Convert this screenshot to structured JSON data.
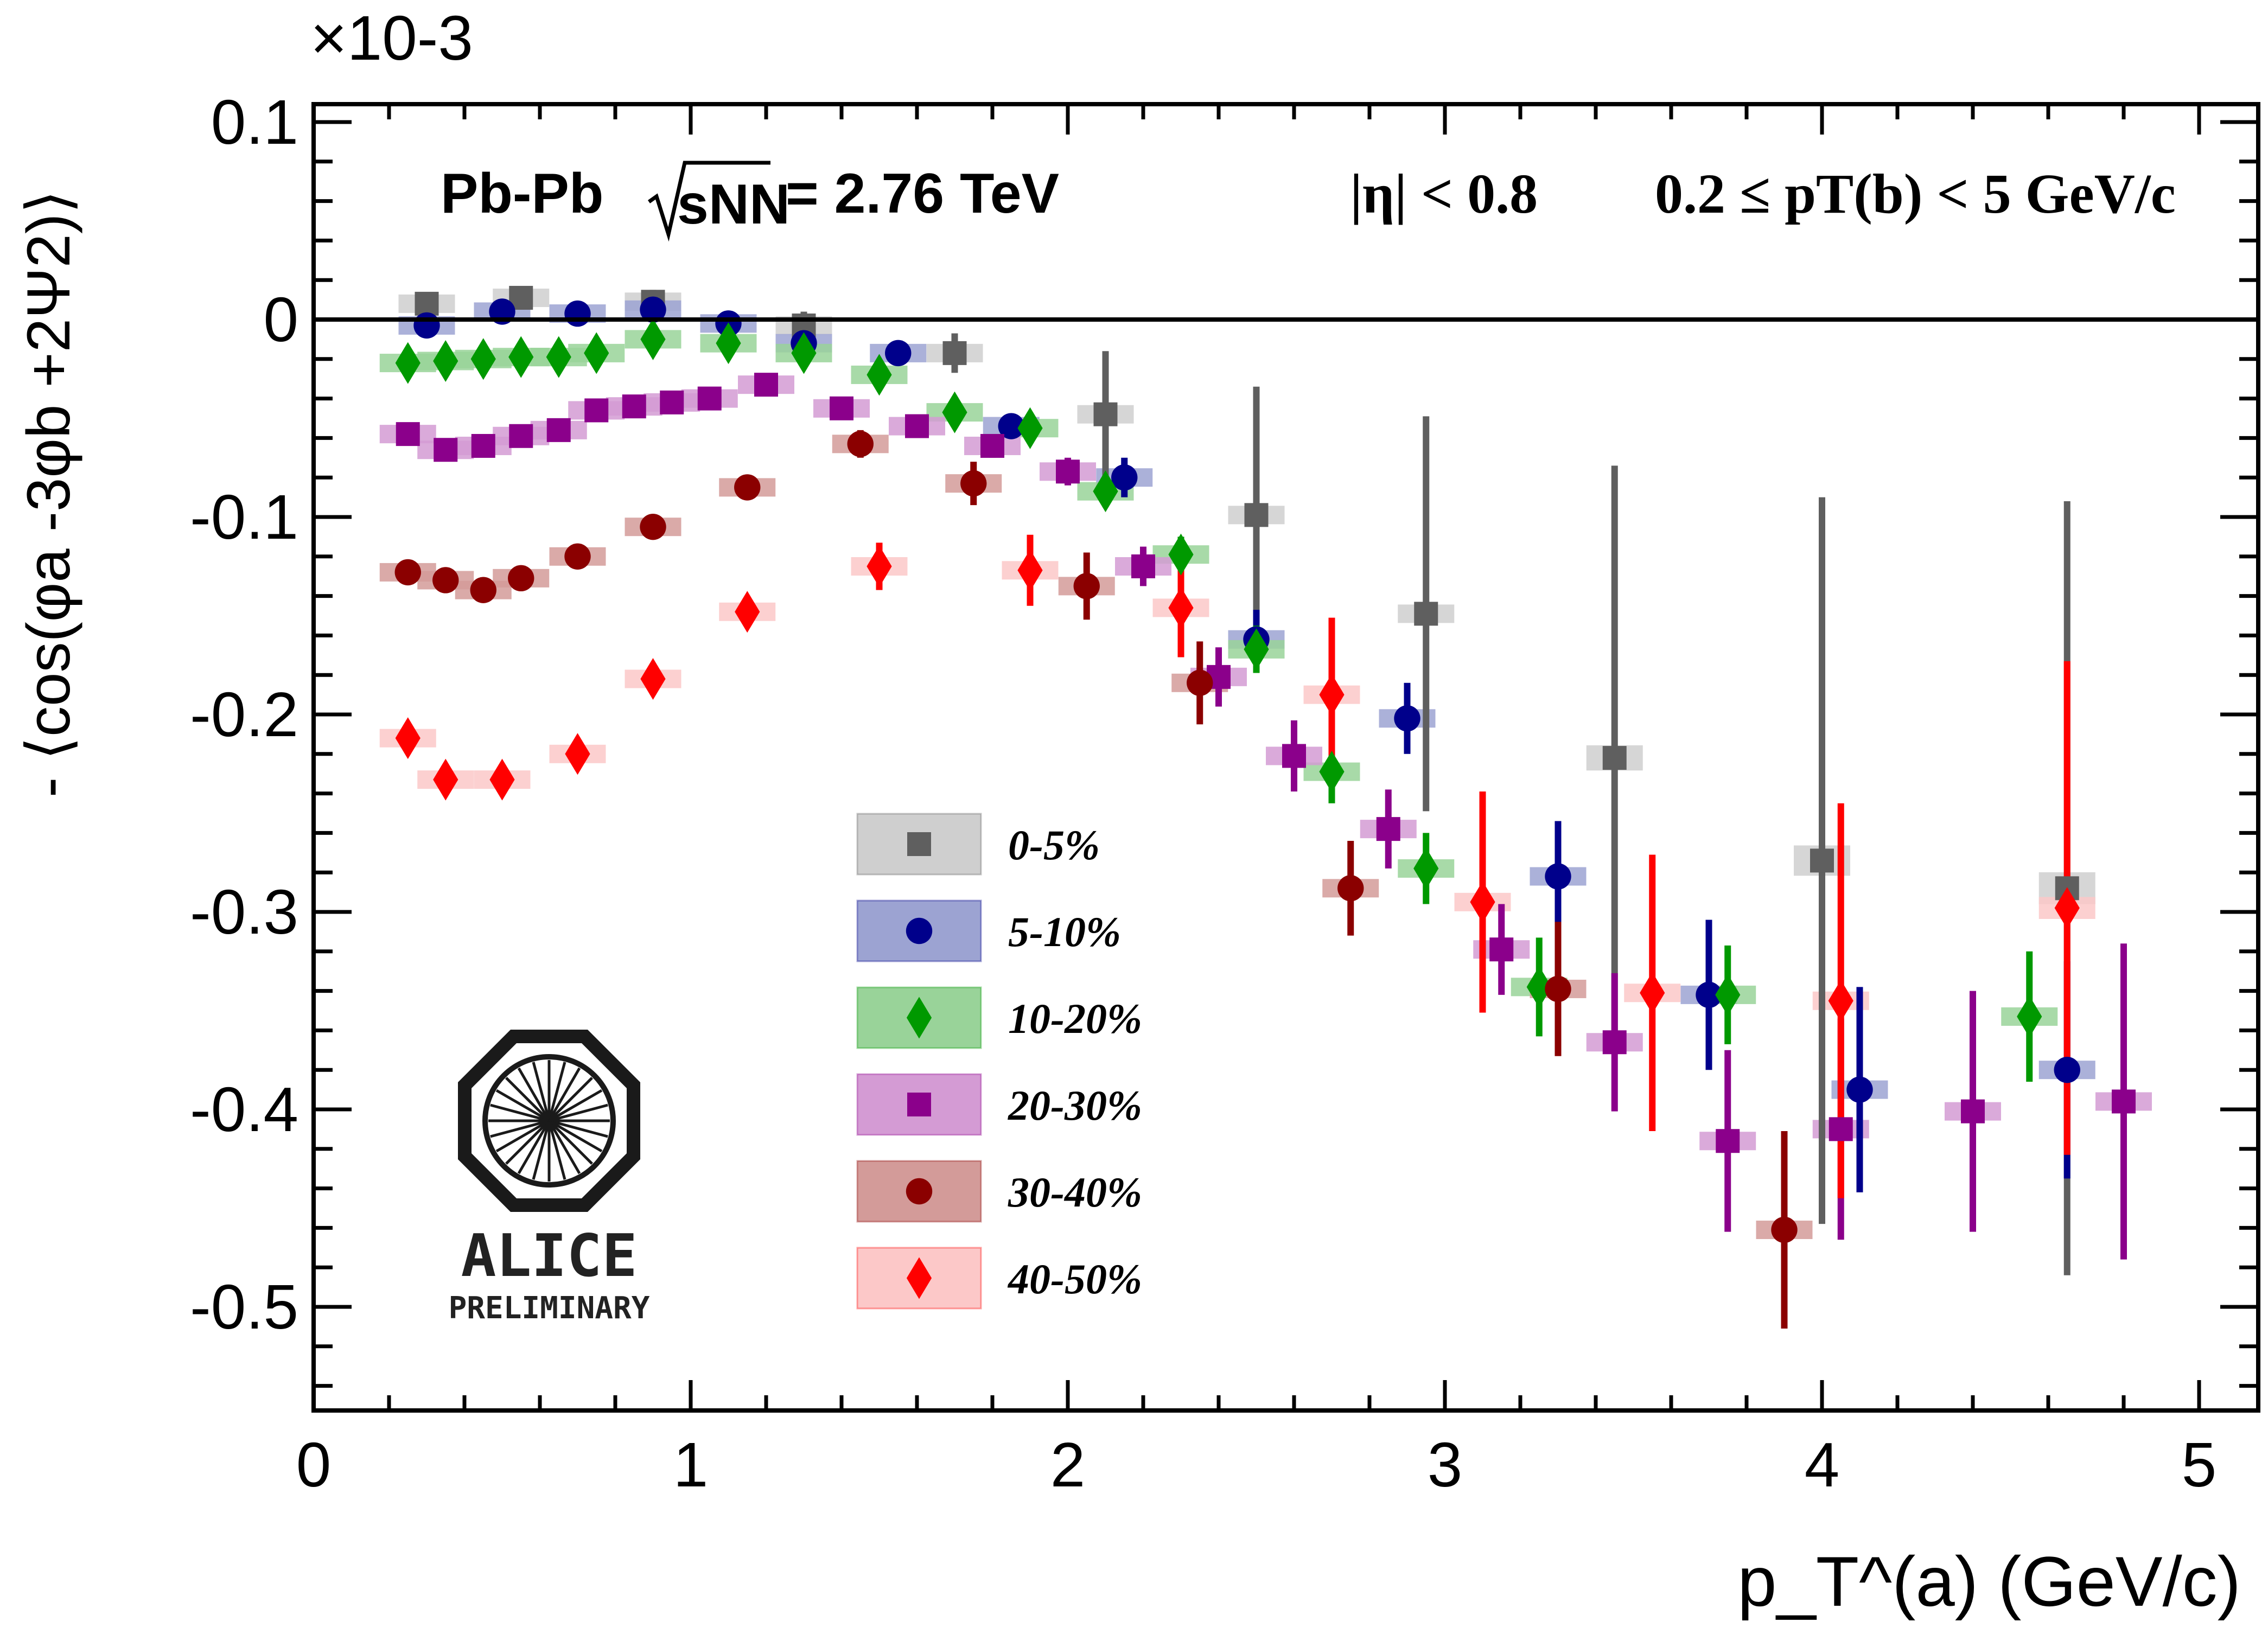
{
  "chart_data": {
    "type": "scatter",
    "title": "",
    "xlabel": "p_T^(a) (GeV/c)",
    "ylabel": "- ⟨cos(φa -3φb +2Ψ2)⟩",
    "y_multiplier": "×10-3",
    "xlim": [
      0,
      5.1
    ],
    "ylim": [
      -0.55,
      0.11
    ],
    "x_ticks": [
      "0",
      "1",
      "2",
      "3",
      "4",
      "5"
    ],
    "y_ticks": [
      "0.1",
      "0",
      "-0.1",
      "-0.2",
      "-0.3",
      "-0.4",
      "-0.5"
    ],
    "x_tick_values": [
      0,
      1,
      2,
      3,
      4,
      5
    ],
    "y_tick_values": [
      0.1,
      0,
      -0.1,
      -0.2,
      -0.3,
      -0.4,
      -0.5
    ],
    "grid": false,
    "legend_position": "lower-center",
    "annotations": {
      "system": "Pb-Pb",
      "energy_symbol": "sNN",
      "energy_value": "= 2.76 TeV",
      "eta_cut": "|η| < 0.8",
      "pt_range": "0.2 ≤ pT(b) < 5 GeV/c"
    },
    "logo": {
      "name": "ALICE",
      "subtitle": "PRELIMINARY"
    },
    "series": [
      {
        "name": "0-5%",
        "marker": "square",
        "color": "#5f5f5f",
        "sys_color": "#cfcfcf",
        "points": [
          [
            0.3,
            0.008,
            0.006
          ],
          [
            0.55,
            0.011,
            0.006
          ],
          [
            0.9,
            0.009,
            0.006
          ],
          [
            1.3,
            -0.003,
            0.007
          ],
          [
            1.7,
            -0.017,
            0.01
          ],
          [
            2.1,
            -0.048,
            0.032
          ],
          [
            2.5,
            -0.099,
            0.065
          ],
          [
            2.95,
            -0.149,
            0.1
          ],
          [
            3.45,
            -0.222,
            0.148
          ],
          [
            4.0,
            -0.274,
            0.184
          ],
          [
            4.65,
            -0.288,
            0.196
          ]
        ]
      },
      {
        "name": "5-10%",
        "marker": "circle",
        "color": "#00008b",
        "sys_color": "#9ca3d2",
        "points": [
          [
            0.3,
            -0.003,
            0.004
          ],
          [
            0.5,
            0.004,
            0.004
          ],
          [
            0.7,
            0.003,
            0.004
          ],
          [
            0.9,
            0.005,
            0.004
          ],
          [
            1.1,
            -0.002,
            0.004
          ],
          [
            1.3,
            -0.012,
            0.005
          ],
          [
            1.55,
            -0.017,
            0.005
          ],
          [
            1.85,
            -0.054,
            0.006
          ],
          [
            2.15,
            -0.08,
            0.01
          ],
          [
            2.5,
            -0.162,
            0.015
          ],
          [
            2.9,
            -0.202,
            0.018
          ],
          [
            3.3,
            -0.282,
            0.028
          ],
          [
            3.7,
            -0.342,
            0.038
          ],
          [
            4.1,
            -0.39,
            0.052
          ],
          [
            4.65,
            -0.38,
            0.055
          ]
        ]
      },
      {
        "name": "10-20%",
        "marker": "diamond",
        "color": "#009900",
        "sys_color": "#99d399",
        "points": [
          [
            0.25,
            -0.022,
            0.005
          ],
          [
            0.35,
            -0.021,
            0.005
          ],
          [
            0.45,
            -0.02,
            0.005
          ],
          [
            0.55,
            -0.019,
            0.005
          ],
          [
            0.65,
            -0.019,
            0.005
          ],
          [
            0.75,
            -0.017,
            0.005
          ],
          [
            0.9,
            -0.01,
            0.005
          ],
          [
            1.1,
            -0.012,
            0.005
          ],
          [
            1.3,
            -0.017,
            0.005
          ],
          [
            1.5,
            -0.028,
            0.006
          ],
          [
            1.7,
            -0.047,
            0.006
          ],
          [
            1.9,
            -0.055,
            0.007
          ],
          [
            2.1,
            -0.087,
            0.008
          ],
          [
            2.3,
            -0.119,
            0.009
          ],
          [
            2.5,
            -0.167,
            0.012
          ],
          [
            2.7,
            -0.229,
            0.016
          ],
          [
            2.95,
            -0.278,
            0.018
          ],
          [
            3.25,
            -0.338,
            0.025
          ],
          [
            3.75,
            -0.342,
            0.025
          ],
          [
            4.55,
            -0.353,
            0.033
          ]
        ]
      },
      {
        "name": "20-30%",
        "marker": "square",
        "color": "#8b008b",
        "sys_color": "#d49bd4",
        "points": [
          [
            0.25,
            -0.058,
            0.004
          ],
          [
            0.35,
            -0.066,
            0.004
          ],
          [
            0.45,
            -0.064,
            0.004
          ],
          [
            0.55,
            -0.059,
            0.004
          ],
          [
            0.65,
            -0.056,
            0.004
          ],
          [
            0.75,
            -0.046,
            0.004
          ],
          [
            0.85,
            -0.044,
            0.004
          ],
          [
            0.95,
            -0.042,
            0.004
          ],
          [
            1.05,
            -0.04,
            0.004
          ],
          [
            1.2,
            -0.033,
            0.004
          ],
          [
            1.4,
            -0.045,
            0.005
          ],
          [
            1.6,
            -0.054,
            0.005
          ],
          [
            1.8,
            -0.064,
            0.006
          ],
          [
            2.0,
            -0.077,
            0.007
          ],
          [
            2.2,
            -0.125,
            0.01
          ],
          [
            2.4,
            -0.181,
            0.015
          ],
          [
            2.6,
            -0.221,
            0.018
          ],
          [
            2.85,
            -0.258,
            0.02
          ],
          [
            3.15,
            -0.319,
            0.023
          ],
          [
            3.45,
            -0.366,
            0.035
          ],
          [
            3.75,
            -0.416,
            0.046
          ],
          [
            4.05,
            -0.41,
            0.056
          ],
          [
            4.4,
            -0.401,
            0.061
          ],
          [
            4.8,
            -0.396,
            0.08
          ]
        ]
      },
      {
        "name": "30-40%",
        "marker": "circle",
        "color": "#8b0000",
        "sys_color": "#d39b99",
        "points": [
          [
            0.25,
            -0.128,
            0.004
          ],
          [
            0.35,
            -0.132,
            0.004
          ],
          [
            0.45,
            -0.137,
            0.004
          ],
          [
            0.55,
            -0.131,
            0.004
          ],
          [
            0.7,
            -0.12,
            0.004
          ],
          [
            0.9,
            -0.105,
            0.004
          ],
          [
            1.15,
            -0.085,
            0.004
          ],
          [
            1.45,
            -0.063,
            0.007
          ],
          [
            1.75,
            -0.083,
            0.011
          ],
          [
            2.05,
            -0.135,
            0.017
          ],
          [
            2.35,
            -0.184,
            0.021
          ],
          [
            2.75,
            -0.288,
            0.024
          ],
          [
            3.3,
            -0.339,
            0.034
          ],
          [
            3.9,
            -0.461,
            0.05
          ]
        ]
      },
      {
        "name": "40-50%",
        "marker": "diamond",
        "color": "#ff0000",
        "sys_color": "#fcc8c8",
        "points": [
          [
            0.25,
            -0.212,
            0.006
          ],
          [
            0.35,
            -0.233,
            0.006
          ],
          [
            0.5,
            -0.233,
            0.006
          ],
          [
            0.7,
            -0.22,
            0.006
          ],
          [
            0.9,
            -0.182,
            0.006
          ],
          [
            1.15,
            -0.148,
            0.007
          ],
          [
            1.5,
            -0.125,
            0.012
          ],
          [
            1.9,
            -0.127,
            0.018
          ],
          [
            2.3,
            -0.146,
            0.025
          ],
          [
            2.7,
            -0.19,
            0.039
          ],
          [
            3.1,
            -0.295,
            0.056
          ],
          [
            3.55,
            -0.341,
            0.07
          ],
          [
            4.05,
            -0.345,
            0.1
          ],
          [
            4.65,
            -0.298,
            0.125
          ]
        ]
      }
    ]
  }
}
